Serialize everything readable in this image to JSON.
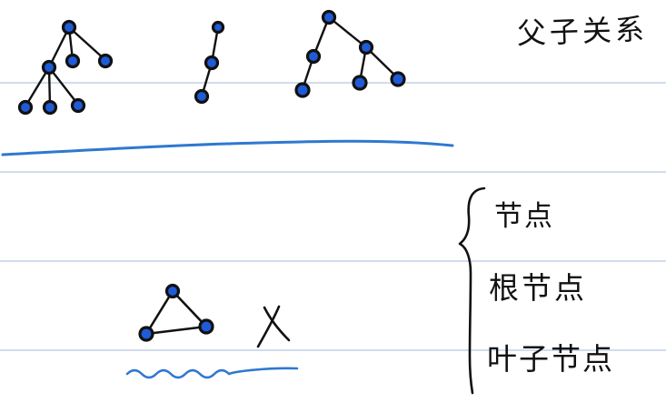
{
  "page": {
    "background": "#ffffff",
    "rule_color": "#b8c8e4",
    "ink_color": "#111111",
    "node_fill": "#1f5bd6",
    "underline_color": "#2f78d0"
  },
  "labels": {
    "title": "父子关系",
    "terms": [
      "节点",
      "根节点",
      "叶子节点"
    ]
  },
  "marks": {
    "cross": "X"
  }
}
